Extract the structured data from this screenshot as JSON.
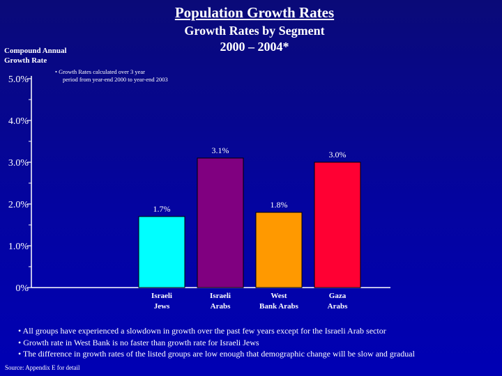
{
  "header": {
    "title": "Population Growth Rates",
    "subtitle_line1": "Growth Rates by Segment",
    "subtitle_line2": "2000 – 2004*"
  },
  "axis_title": {
    "line1": "Compound Annual",
    "line2": "Growth Rate"
  },
  "footnote": {
    "line1": "• Growth Rates calculated over 3 year",
    "line2": "period from year-end 2000 to year-end 2003"
  },
  "bullets": [
    "• All groups have experienced a slowdown in growth over the past few years except for the Israeli Arab sector",
    "• Growth rate in West Bank is no faster than growth rate for Israeli Jews",
    "• The difference in growth rates of the listed groups are low enough that demographic change will be slow and gradual"
  ],
  "source": "Source: Appendix E for detail",
  "colors": {
    "background": "#0404a0",
    "axis": "#ffffff"
  },
  "chart_data": {
    "type": "bar",
    "title": "Population Growth Rates",
    "subtitle": "Growth Rates by Segment 2000 – 2004*",
    "ylabel": "Compound Annual Growth Rate",
    "xlabel": "",
    "ylim": [
      0,
      5
    ],
    "yticks": [
      {
        "value": 0,
        "label": "0%"
      },
      {
        "value": 1,
        "label": "1.0%"
      },
      {
        "value": 2,
        "label": "2.0%"
      },
      {
        "value": 3,
        "label": "3.0%"
      },
      {
        "value": 4,
        "label": "4.0%"
      },
      {
        "value": 5,
        "label": "5.0%"
      }
    ],
    "minor_ticks": [
      0.5,
      1.5,
      2.5,
      3.5,
      4.5
    ],
    "grid": false,
    "categories": [
      {
        "line1": "Israeli",
        "line2": "Jews"
      },
      {
        "line1": "Israeli",
        "line2": "Arabs"
      },
      {
        "line1": "West",
        "line2": "Bank Arabs"
      },
      {
        "line1": "Gaza",
        "line2": "Arabs"
      }
    ],
    "values": [
      1.7,
      3.1,
      1.8,
      3.0
    ],
    "data_labels": [
      "1.7%",
      "3.1%",
      "1.8%",
      "3.0%"
    ],
    "bar_colors": [
      "#00ffff",
      "#800080",
      "#ff9900",
      "#ff0033"
    ]
  }
}
